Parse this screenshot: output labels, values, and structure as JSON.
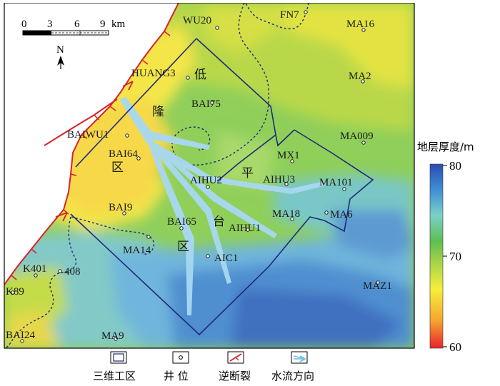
{
  "scale_bar": {
    "ticks": [
      "0",
      "3",
      "6",
      "9"
    ],
    "unit": "km"
  },
  "north_arrow": {
    "label": "N"
  },
  "wells": [
    {
      "name": "WU20"
    },
    {
      "name": "FN7"
    },
    {
      "name": "MA16"
    },
    {
      "name": "HUANG3"
    },
    {
      "name": "MA2"
    },
    {
      "name": "BAI75"
    },
    {
      "name": "BAIWU1"
    },
    {
      "name": "MA009"
    },
    {
      "name": "BAI64"
    },
    {
      "name": "MX1"
    },
    {
      "name": "AIHU2"
    },
    {
      "name": "AIHU3"
    },
    {
      "name": "MA101"
    },
    {
      "name": "BAI9"
    },
    {
      "name": "MA18"
    },
    {
      "name": "MA6"
    },
    {
      "name": "BAI65"
    },
    {
      "name": "AIHU1"
    },
    {
      "name": "MA14"
    },
    {
      "name": "AIC1"
    },
    {
      "name": "K401"
    },
    {
      "name": "408"
    },
    {
      "name": "K89"
    },
    {
      "name": "MAZ1"
    },
    {
      "name": "BAI24"
    },
    {
      "name": "MA9"
    }
  ],
  "zone_labels": {
    "uplift": [
      "低",
      "隆",
      "区"
    ],
    "platform": [
      "平",
      "台",
      "区"
    ]
  },
  "colorbar": {
    "title": "地层厚度/m",
    "ticks": [
      "80",
      "70",
      "60"
    ],
    "min": 60,
    "max": 80,
    "colors": [
      "#e8232a",
      "#f6a52e",
      "#f6ef3a",
      "#9fd04a",
      "#5bbf52",
      "#7bd0c8",
      "#3e8fd6",
      "#2a4db0"
    ]
  },
  "legend": [
    {
      "icon": "work-area-icon",
      "label": "三维工区"
    },
    {
      "icon": "well-icon",
      "label": "井 位"
    },
    {
      "icon": "reverse-fault-icon",
      "label": "逆断裂"
    },
    {
      "icon": "flow-direction-icon",
      "label": "水流方向"
    }
  ]
}
